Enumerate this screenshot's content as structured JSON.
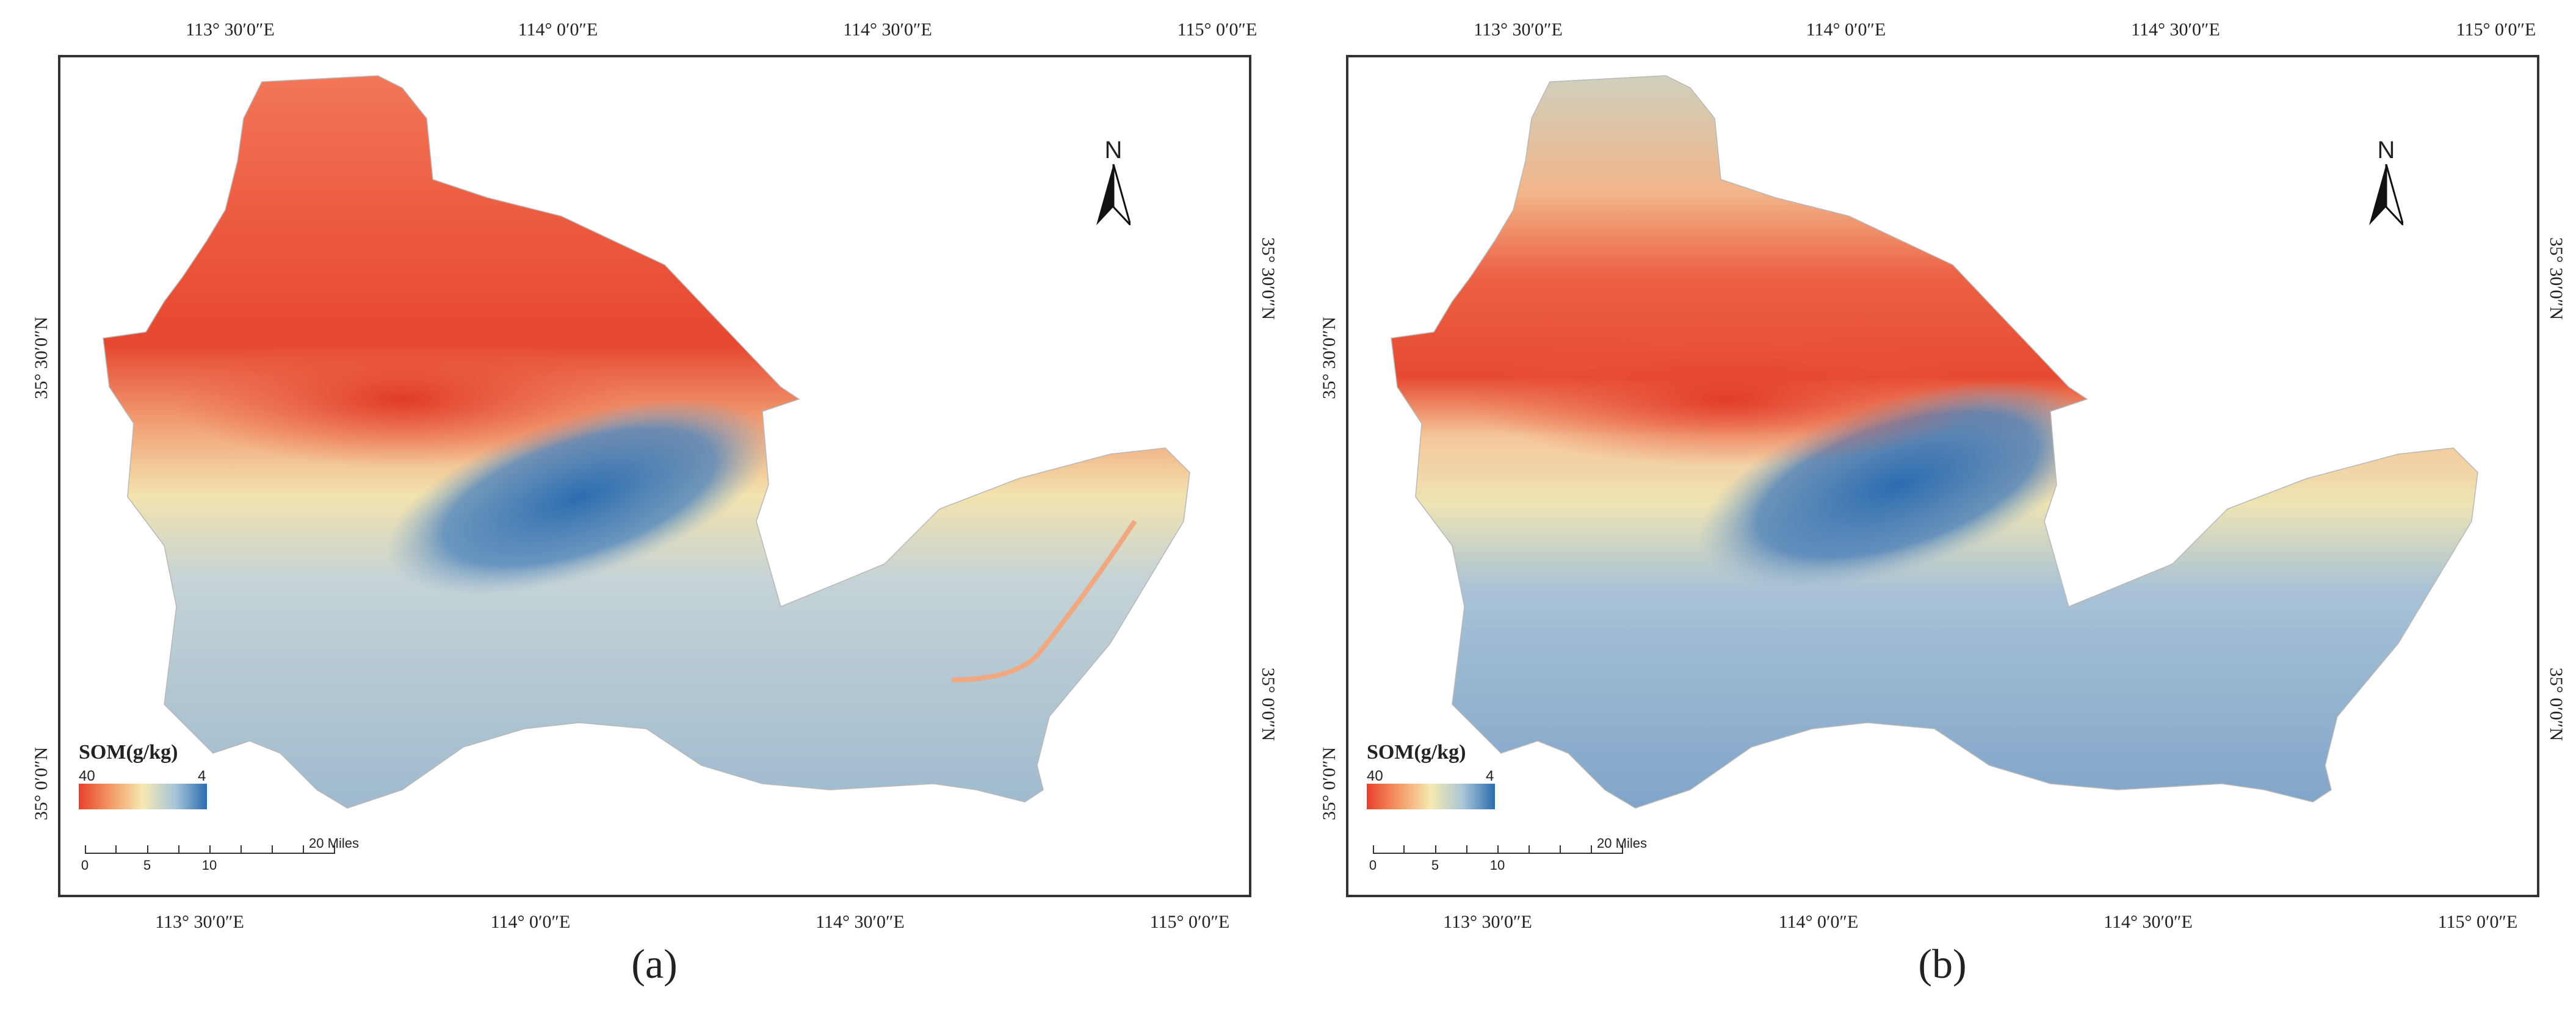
{
  "panels": [
    {
      "caption": "(a)",
      "lon_ticks": [
        "113° 30′0″E",
        "114° 0′0″E",
        "114° 30′0″E",
        "115° 0′0″E"
      ],
      "lat_ticks": [
        "35° 30′0″N",
        "35° 0′0″N"
      ],
      "legend": {
        "title": "SOM(g/kg)",
        "high": "40",
        "low": "4"
      },
      "scale": {
        "labels": [
          "0",
          "5",
          "10",
          "20 Miles"
        ]
      },
      "north_label": "N"
    },
    {
      "caption": "(b)",
      "lon_ticks": [
        "113° 30′0″E",
        "114° 0′0″E",
        "114° 30′0″E",
        "115° 0′0″E"
      ],
      "lat_ticks": [
        "35° 30′0″N",
        "35° 0′0″N"
      ],
      "legend": {
        "title": "SOM(g/kg)",
        "high": "40",
        "low": "4"
      },
      "scale": {
        "labels": [
          "0",
          "5",
          "10",
          "20 Miles"
        ]
      },
      "north_label": "N"
    }
  ],
  "colors": {
    "high": "#e8412c",
    "mid": "#f6e9b2",
    "low": "#2b6cb0",
    "frame": "#333333"
  }
}
